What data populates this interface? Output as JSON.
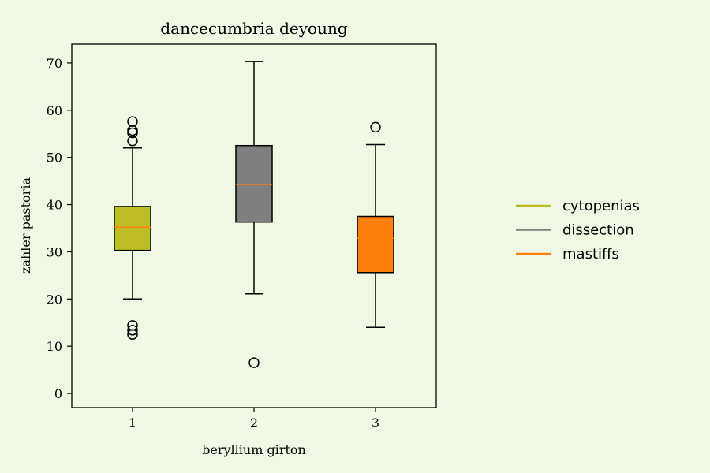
{
  "chart_data": {
    "type": "box",
    "title": "dancecumbria deyoung",
    "xlabel": "beryllium girton",
    "ylabel": "zahler pastoria",
    "categories": [
      "1",
      "2",
      "3"
    ],
    "ylim": [
      -3,
      74
    ],
    "yticks": [
      0,
      10,
      20,
      30,
      40,
      50,
      60,
      70
    ],
    "grid": false,
    "legend_position": "right",
    "series": [
      {
        "name": "cytopenias",
        "color": "#bcbd22",
        "whisker_low": 20,
        "q1": 30.3,
        "median": 35.2,
        "q3": 39.6,
        "whisker_high": 52,
        "outliers": [
          12.5,
          13.4,
          14.4,
          53.5,
          55.2,
          55.7,
          57.6
        ]
      },
      {
        "name": "dissection",
        "color": "#7f7f7f",
        "whisker_low": 21.1,
        "q1": 36.3,
        "median": 44.3,
        "q3": 52.5,
        "whisker_high": 70.3,
        "outliers": [
          6.5
        ]
      },
      {
        "name": "mastiffs",
        "color": "#ff7f0e",
        "whisker_low": 14,
        "q1": 25.6,
        "median": 32.9,
        "q3": 37.5,
        "whisker_high": 52.7,
        "outliers": [
          56.4
        ]
      }
    ],
    "median_color": "#ff7f0e"
  }
}
